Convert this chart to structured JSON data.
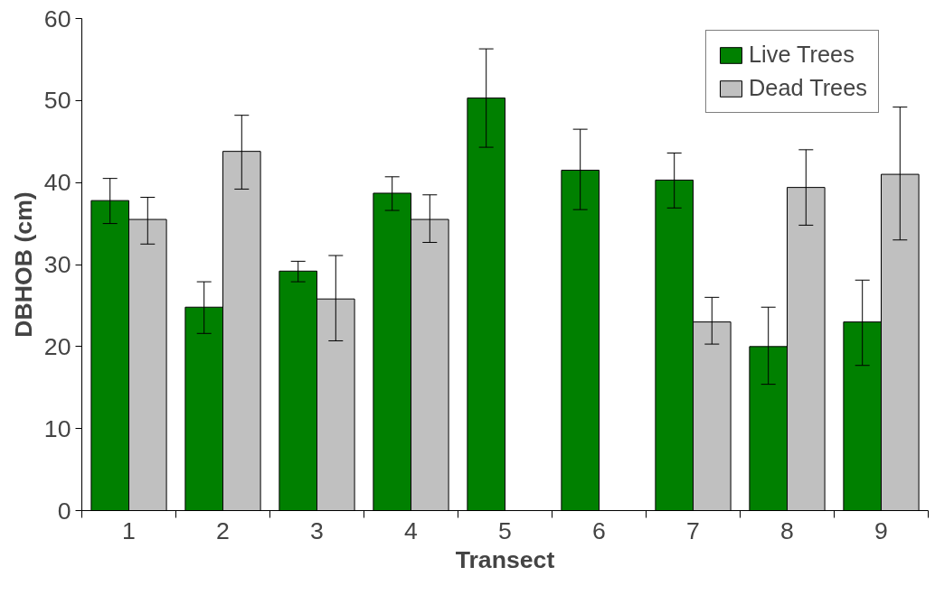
{
  "chart_data": {
    "type": "bar",
    "xlabel": "Transect",
    "ylabel": "DBHOB (cm)",
    "categories": [
      "1",
      "2",
      "3",
      "4",
      "5",
      "6",
      "7",
      "8",
      "9"
    ],
    "series": [
      {
        "name": "Live Trees",
        "color": "#008000",
        "values": [
          37.8,
          24.8,
          29.2,
          38.7,
          50.3,
          41.5,
          40.3,
          20.0,
          23.0
        ],
        "errors": [
          [
            35.0,
            40.5
          ],
          [
            21.6,
            27.9
          ],
          [
            27.9,
            30.4
          ],
          [
            36.6,
            40.7
          ],
          [
            44.3,
            56.3
          ],
          [
            36.7,
            46.5
          ],
          [
            36.9,
            43.6
          ],
          [
            15.4,
            24.8
          ],
          [
            17.7,
            28.1
          ]
        ]
      },
      {
        "name": "Dead Trees",
        "color": "#c0c0c0",
        "values": [
          35.5,
          43.8,
          25.8,
          35.5,
          0,
          0,
          23.0,
          39.4,
          41.0
        ],
        "errors": [
          [
            32.5,
            38.2
          ],
          [
            39.2,
            48.2
          ],
          [
            20.7,
            31.1
          ],
          [
            32.7,
            38.5
          ],
          null,
          null,
          [
            20.3,
            26.0
          ],
          [
            34.8,
            44.0
          ],
          [
            33.0,
            49.2
          ]
        ]
      }
    ],
    "ylim": [
      0,
      60
    ],
    "yticks": [
      0,
      10,
      20,
      30,
      40,
      50,
      60
    ],
    "grid": false,
    "legend": "top right"
  }
}
